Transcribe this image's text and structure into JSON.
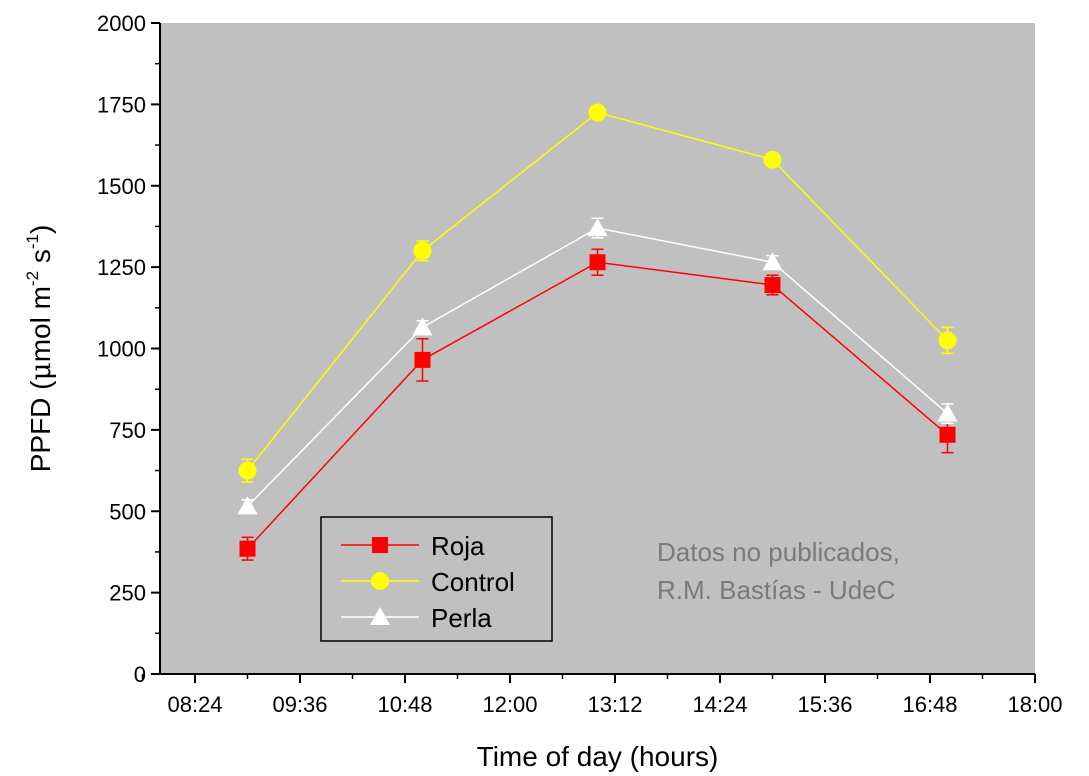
{
  "chart_data": {
    "type": "line",
    "xlabel": "Time of day (hours)",
    "ylabel": {
      "prefix": "PPFD (",
      "mu": "μ",
      "unit_mol_m": "mol m",
      "exp_m": "-2",
      "unit_s": " s",
      "exp_s": "-1",
      "suffix": ")"
    },
    "xlim_minutes": [
      480,
      1080
    ],
    "ylim": [
      0,
      2000
    ],
    "x_tick_labels": [
      "08:24",
      "09:36",
      "10:48",
      "12:00",
      "13:12",
      "14:24",
      "15:36",
      "16:48",
      "18:00"
    ],
    "y_ticks": [
      0,
      250,
      500,
      750,
      1000,
      1250,
      1500,
      1750,
      2000
    ],
    "x": [
      "09:00",
      "11:00",
      "13:00",
      "15:00",
      "17:00"
    ],
    "series": [
      {
        "name": "Roja",
        "color": "#ff0000",
        "marker": "square",
        "values": [
          385,
          965,
          1265,
          1195,
          735
        ],
        "errors": [
          35,
          65,
          40,
          30,
          55
        ]
      },
      {
        "name": "Control",
        "color": "#ffff00",
        "marker": "circle",
        "values": [
          625,
          1300,
          1725,
          1580,
          1025
        ],
        "errors": [
          35,
          30,
          20,
          15,
          40
        ]
      },
      {
        "name": "Perla",
        "color": "#ffffff",
        "marker": "triangle",
        "values": [
          515,
          1065,
          1370,
          1265,
          800
        ],
        "errors": [
          20,
          20,
          30,
          20,
          30
        ]
      }
    ],
    "legend_position": "bottom-left",
    "grid": false,
    "plot_background": "#c0c0c0",
    "annotation": [
      "Datos no publicados,",
      "R.M. Bastías - UdeC"
    ]
  }
}
